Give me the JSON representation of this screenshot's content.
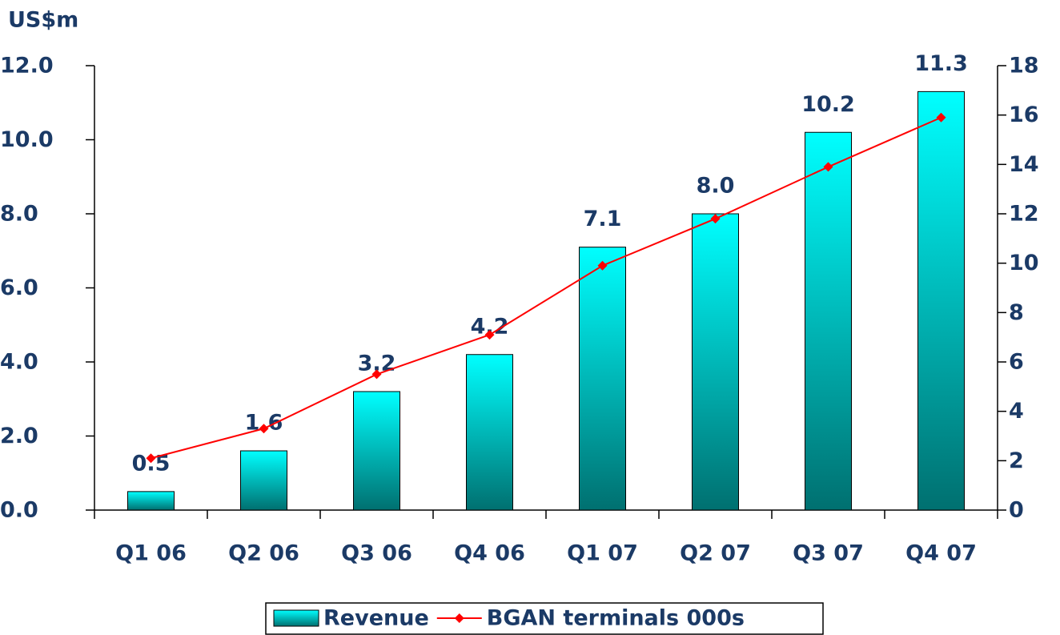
{
  "chart_data": {
    "type": "bar",
    "y_label": "US$m",
    "categories": [
      "Q1 06",
      "Q2 06",
      "Q3 06",
      "Q4 06",
      "Q1 07",
      "Q2 07",
      "Q3 07",
      "Q4 07"
    ],
    "series": [
      {
        "name": "Revenue",
        "type": "bar",
        "color": "#00e0e0",
        "values": [
          0.5,
          1.6,
          3.2,
          4.2,
          7.1,
          8.0,
          10.2,
          11.3
        ],
        "value_labels": [
          "0.5",
          "1.6",
          "3.2",
          "4.2",
          "7.1",
          "8.0",
          "10.2",
          "11.3"
        ]
      },
      {
        "name": "BGAN terminals 000s",
        "type": "line",
        "axis": "y2",
        "color": "#ff0000",
        "values": [
          2.1,
          3.3,
          5.5,
          7.1,
          9.9,
          11.8,
          13.9,
          15.9
        ]
      }
    ],
    "ylim": [
      0,
      12
    ],
    "yticks": [
      {
        "value": 0,
        "label": "0.0"
      },
      {
        "value": 2,
        "label": "2.0"
      },
      {
        "value": 4,
        "label": "4.0"
      },
      {
        "value": 6,
        "label": "6.0"
      },
      {
        "value": 8,
        "label": "8.0"
      },
      {
        "value": 10,
        "label": "10.0"
      },
      {
        "value": 12,
        "label": "12.0"
      }
    ],
    "y2lim": [
      0,
      18
    ],
    "y2ticks": [
      0,
      2,
      4,
      6,
      8,
      10,
      12,
      14,
      16,
      18
    ],
    "legend": "bottom"
  }
}
